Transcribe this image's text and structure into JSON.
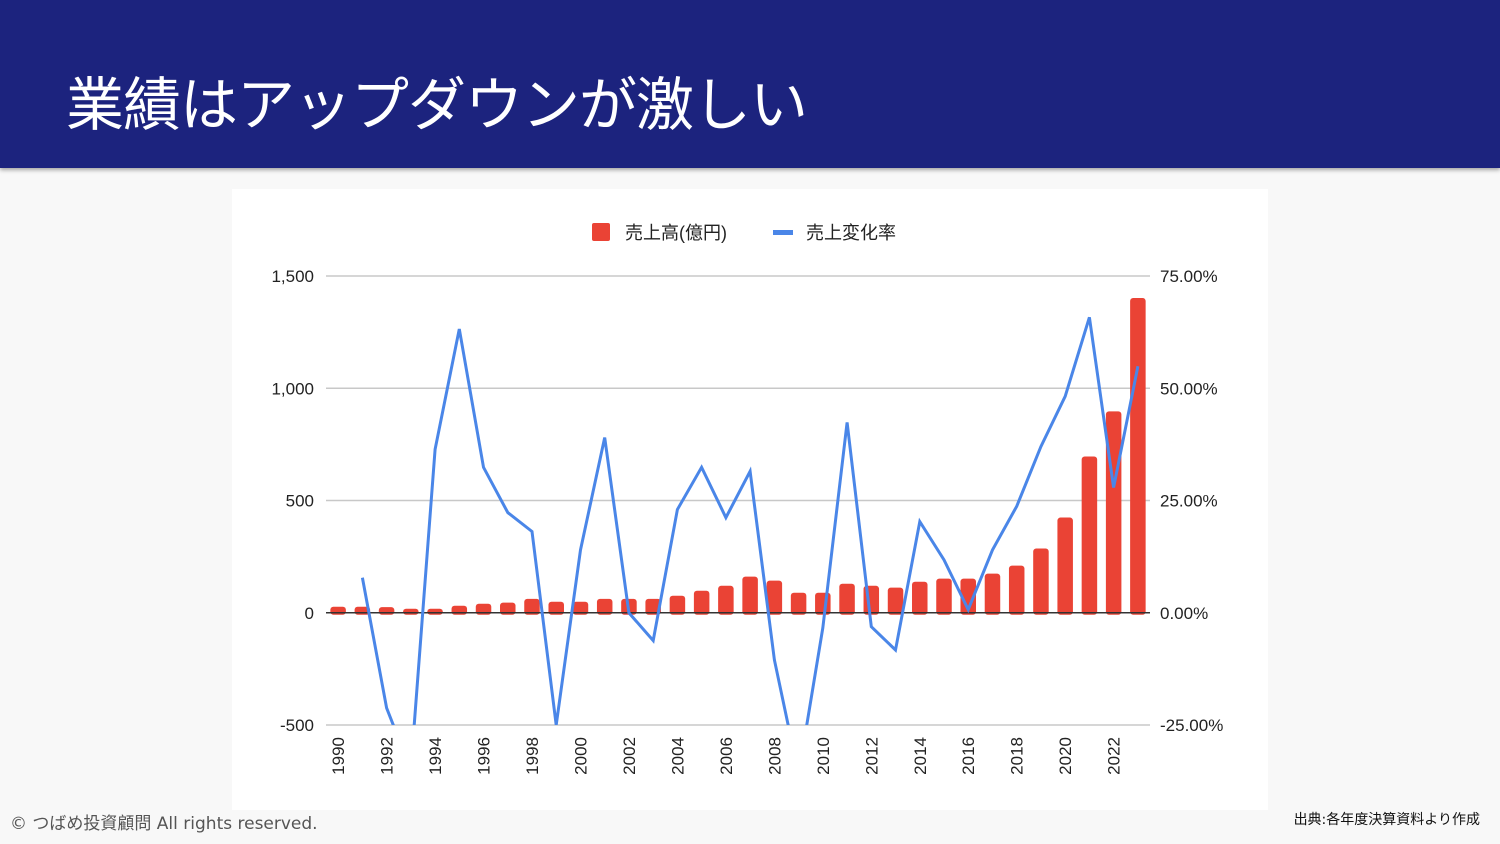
{
  "slide": {
    "title": "業績はアップダウンが激しい",
    "copyright": "© つばめ投資顧問 All rights reserved.",
    "source": "出典:各年度決算資料より作成"
  },
  "colors": {
    "header_bg": "#1c237e",
    "bar": "#ea4335",
    "line": "#4a86e8"
  },
  "chart_data": {
    "type": "bar+line",
    "title": "",
    "legend": {
      "position": "top-center",
      "entries": [
        "売上高(億円)",
        "売上変化率"
      ]
    },
    "categories": [
      1990,
      1991,
      1992,
      1993,
      1994,
      1995,
      1996,
      1997,
      1998,
      1999,
      2000,
      2001,
      2002,
      2003,
      2004,
      2005,
      2006,
      2007,
      2008,
      2009,
      2010,
      2011,
      2012,
      2013,
      2014,
      2015,
      2016,
      2017,
      2018,
      2019,
      2020,
      2021,
      2022,
      2023
    ],
    "x_tick_labels": [
      "1990",
      "1992",
      "1994",
      "1996",
      "1998",
      "2000",
      "2002",
      "2004",
      "2006",
      "2008",
      "2010",
      "2012",
      "2014",
      "2016",
      "2018",
      "2020",
      "2022"
    ],
    "series": [
      {
        "name": "売上高(億円)",
        "type": "bar",
        "axis": "left",
        "values": [
          27,
          27,
          25,
          18,
          18,
          31,
          40,
          45,
          62,
          49,
          49,
          62,
          62,
          62,
          76,
          98,
          120,
          161,
          143,
          89,
          89,
          129,
          120,
          112,
          138,
          152,
          152,
          174,
          210,
          286,
          424,
          696,
          897,
          1402
        ]
      },
      {
        "name": "売上変化率",
        "type": "line",
        "axis": "right",
        "values": [
          null,
          7.8,
          -21.2,
          -35,
          36.4,
          63.2,
          32.4,
          22.3,
          18.1,
          -25,
          14,
          39,
          0,
          -6.2,
          23,
          32.4,
          21.2,
          31.5,
          -10.5,
          -36,
          -3.4,
          42.4,
          -3.1,
          -8.3,
          20.3,
          11.8,
          0.7,
          14,
          23.7,
          37,
          48.2,
          65.8,
          27.9,
          54.9
        ]
      }
    ],
    "y_left": {
      "min": -500,
      "max": 1500,
      "ticks": [
        -500,
        0,
        500,
        1000,
        1500
      ],
      "tick_labels": [
        "-500",
        "0",
        "500",
        "1,000",
        "1,500"
      ]
    },
    "y_right": {
      "min": -25,
      "max": 75,
      "unit": "%",
      "ticks": [
        -25,
        0,
        25,
        50,
        75
      ],
      "tick_labels": [
        "-25.00%",
        "0.00%",
        "25.00%",
        "50.00%",
        "75.00%"
      ]
    },
    "grid": true
  }
}
